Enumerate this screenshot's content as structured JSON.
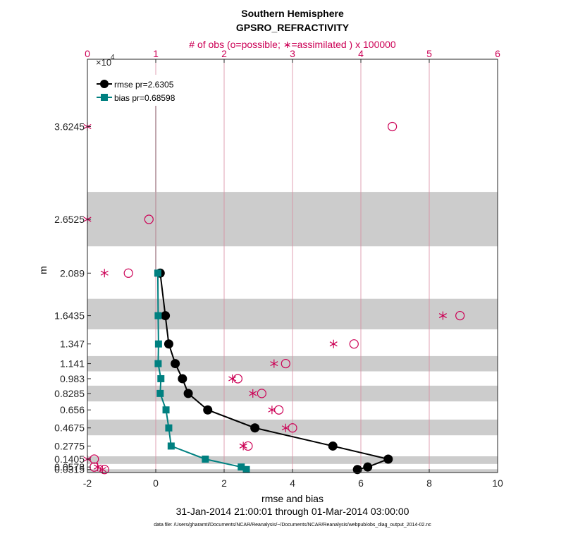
{
  "chart_data": {
    "type": "line",
    "title_line1": "Southern Hemisphere",
    "title_line2": "GPSRO_REFRACTIVITY",
    "top_axis_label": "# of obs (o=possible; ∗=assimilated ) x 100000",
    "top_axis_multiplier": "×10",
    "top_axis_multiplier_exp": "4",
    "top_xlim": [
      0,
      6
    ],
    "top_ticks": [
      "0",
      "1",
      "2",
      "3",
      "4",
      "5",
      "6"
    ],
    "xlabel": "rmse and bias",
    "xlim": [
      -2,
      10
    ],
    "x_ticks": [
      "-2",
      "0",
      "2",
      "4",
      "6",
      "8",
      "10"
    ],
    "ylabel": "m",
    "y_tick_labels": [
      "3.6245",
      "2.6525",
      "2.089",
      "1.6435",
      "1.347",
      "1.141",
      "0.983",
      "0.8285",
      "0.656",
      "0.4675",
      "0.2775",
      "0.1405",
      "0.0578",
      "0.0315"
    ],
    "y_tick_values": [
      3.6245,
      2.6525,
      2.089,
      1.6435,
      1.347,
      1.141,
      0.983,
      0.8285,
      0.656,
      0.4675,
      0.2775,
      0.1405,
      0.0578,
      0.0315
    ],
    "ylim": [
      0,
      4.33
    ],
    "shaded_bands": [
      [
        2.37,
        2.94
      ],
      [
        1.5,
        1.82
      ],
      [
        1.06,
        1.22
      ],
      [
        0.745,
        0.91
      ],
      [
        0.39,
        0.555
      ],
      [
        0.09,
        0.17
      ],
      [
        0.0,
        0.035
      ]
    ],
    "legend_location": "top-left",
    "series": [
      {
        "name": "rmse pr=2.6305",
        "color": "#000000",
        "marker": "circle",
        "points": [
          {
            "x": 0.13,
            "y": 2.089
          },
          {
            "x": 0.28,
            "y": 1.6435
          },
          {
            "x": 0.38,
            "y": 1.347
          },
          {
            "x": 0.57,
            "y": 1.141
          },
          {
            "x": 0.78,
            "y": 0.983
          },
          {
            "x": 0.95,
            "y": 0.8285
          },
          {
            "x": 1.52,
            "y": 0.656
          },
          {
            "x": 2.9,
            "y": 0.4675
          },
          {
            "x": 5.18,
            "y": 0.2775
          },
          {
            "x": 6.8,
            "y": 0.1405
          },
          {
            "x": 6.2,
            "y": 0.0578
          },
          {
            "x": 5.9,
            "y": 0.0315
          }
        ]
      },
      {
        "name": "bias pr=0.68598",
        "color": "#008080",
        "marker": "square",
        "points": [
          {
            "x": 0.06,
            "y": 2.089
          },
          {
            "x": 0.07,
            "y": 1.6435
          },
          {
            "x": 0.08,
            "y": 1.347
          },
          {
            "x": 0.07,
            "y": 1.141
          },
          {
            "x": 0.15,
            "y": 0.983
          },
          {
            "x": 0.13,
            "y": 0.8285
          },
          {
            "x": 0.3,
            "y": 0.656
          },
          {
            "x": 0.38,
            "y": 0.4675
          },
          {
            "x": 0.45,
            "y": 0.2775
          },
          {
            "x": 1.45,
            "y": 0.1405
          },
          {
            "x": 2.5,
            "y": 0.0578
          },
          {
            "x": 2.65,
            "y": 0.0315
          }
        ]
      }
    ],
    "obs_possible": [
      {
        "x": 4.46,
        "y": 3.6245
      },
      {
        "x": 0.9,
        "y": 2.6525
      },
      {
        "x": 0.6,
        "y": 2.089
      },
      {
        "x": 5.45,
        "y": 1.6435
      },
      {
        "x": 3.9,
        "y": 1.347
      },
      {
        "x": 2.9,
        "y": 1.141
      },
      {
        "x": 2.2,
        "y": 0.983
      },
      {
        "x": 2.55,
        "y": 0.8285
      },
      {
        "x": 2.8,
        "y": 0.656
      },
      {
        "x": 3.0,
        "y": 0.4675
      },
      {
        "x": 2.35,
        "y": 0.2775
      },
      {
        "x": 0.1,
        "y": 0.1405
      },
      {
        "x": 0.1,
        "y": 0.0578
      },
      {
        "x": 0.25,
        "y": 0.0315
      }
    ],
    "obs_assimilated": [
      {
        "x": 0.0,
        "y": 3.6245
      },
      {
        "x": 0.0,
        "y": 2.6525
      },
      {
        "x": 0.25,
        "y": 2.089
      },
      {
        "x": 5.2,
        "y": 1.6435
      },
      {
        "x": 3.6,
        "y": 1.347
      },
      {
        "x": 2.73,
        "y": 1.141
      },
      {
        "x": 2.12,
        "y": 0.983
      },
      {
        "x": 2.42,
        "y": 0.8285
      },
      {
        "x": 2.7,
        "y": 0.656
      },
      {
        "x": 2.9,
        "y": 0.4675
      },
      {
        "x": 2.28,
        "y": 0.2775
      },
      {
        "x": 0.0,
        "y": 0.1405
      },
      {
        "x": 0.15,
        "y": 0.0578
      },
      {
        "x": 0.22,
        "y": 0.0315
      }
    ],
    "vertical_marker": {
      "x": 0.0,
      "y_from": 2.05,
      "y_to": 4.0
    },
    "date_range": "31-Jan-2014 21:00:01 through 01-Mar-2014 03:00:00",
    "footnote": "data file: /Users/gharamti/Documents/NCAR/Reanalysis/~/Documents/NCAR/Reanalysis/webpub/obs_diag_output_2014-02.nc"
  },
  "colors": {
    "obs": "#cc0055",
    "rmse": "#000000",
    "bias": "#008080",
    "band": "#cccccc",
    "vgrid": "#d88aa0"
  }
}
